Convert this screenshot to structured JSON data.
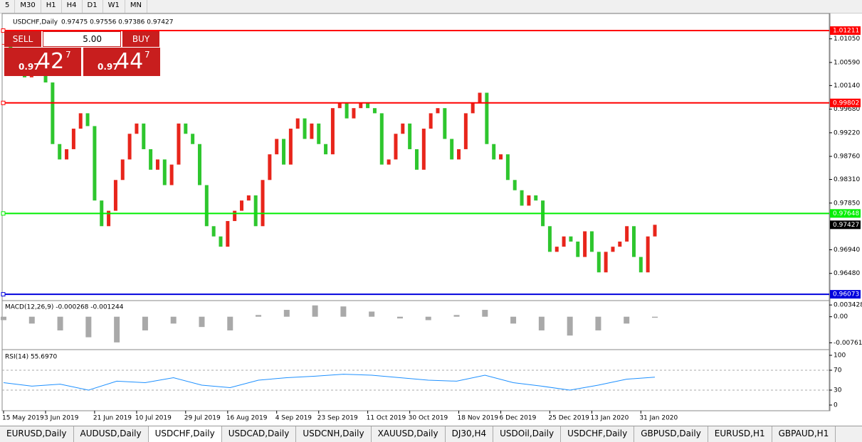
{
  "toolbar": {
    "timeframes": [
      "5",
      "M30",
      "H1",
      "H4",
      "D1",
      "W1",
      "MN"
    ]
  },
  "chart_data": [
    {
      "type": "candlestick",
      "title": "USDCHF,Daily",
      "info": "0.97475 0.97556 0.97386 0.97427",
      "categories": [
        "15 May 2019",
        null,
        null,
        null,
        null,
        null,
        "3 Jun 2019",
        null,
        null,
        null,
        null,
        null,
        null,
        "21 Jun 2019",
        null,
        null,
        null,
        null,
        null,
        "10 Jul 2019",
        null,
        null,
        null,
        null,
        null,
        null,
        "29 Jul 2019",
        null,
        null,
        null,
        null,
        null,
        "16 Aug 2019",
        null,
        null,
        null,
        null,
        null,
        null,
        "4 Sep 2019",
        null,
        null,
        null,
        null,
        null,
        "23 Sep 2019",
        null,
        null,
        null,
        null,
        null,
        null,
        "11 Oct 2019",
        null,
        null,
        null,
        null,
        null,
        "30 Oct 2019",
        null,
        null,
        null,
        null,
        null,
        null,
        "18 Nov 2019",
        null,
        null,
        null,
        null,
        null,
        "6 Dec 2019",
        null,
        null,
        null,
        null,
        null,
        null,
        "25 Dec 2019",
        null,
        null,
        null,
        null,
        null,
        "13 Jan 2020",
        null,
        null,
        null,
        null,
        null,
        null,
        "31 Jan 2020",
        null,
        null
      ],
      "close": [
        1.0095,
        1.008,
        1.006,
        1.003,
        1.0045,
        1.006,
        1.002,
        0.99,
        0.987,
        0.989,
        0.993,
        0.996,
        0.9935,
        0.979,
        0.974,
        0.977,
        0.983,
        0.987,
        0.992,
        0.994,
        0.989,
        0.985,
        0.987,
        0.982,
        0.986,
        0.994,
        0.992,
        0.99,
        0.982,
        0.974,
        0.972,
        0.97,
        0.975,
        0.977,
        0.979,
        0.98,
        0.974,
        0.983,
        0.988,
        0.991,
        0.986,
        0.993,
        0.995,
        0.991,
        0.994,
        0.99,
        0.988,
        0.997,
        0.998,
        0.995,
        0.997,
        0.998,
        0.997,
        0.996,
        0.986,
        0.987,
        0.992,
        0.994,
        0.989,
        0.985,
        0.993,
        0.996,
        0.997,
        0.991,
        0.987,
        0.989,
        0.996,
        0.998,
        1.0,
        0.99,
        0.987,
        0.988,
        0.983,
        0.981,
        0.978,
        0.98,
        0.979,
        0.974,
        0.969,
        0.97,
        0.972,
        0.971,
        0.968,
        0.973,
        0.969,
        0.965,
        0.969,
        0.97,
        0.971,
        0.974,
        0.968,
        0.965,
        0.972,
        0.97427
      ],
      "up_color": "#e8251b",
      "down_color": "#2ec62e",
      "ylim": [
        0.9595,
        1.0153
      ],
      "yticks": [
        {
          "value": 1.0105,
          "label": "1.01050"
        },
        {
          "value": 1.0059,
          "label": "1.00590"
        },
        {
          "value": 1.0014,
          "label": "1.00140"
        },
        {
          "value": 0.9968,
          "label": "0.99680"
        },
        {
          "value": 0.9922,
          "label": "0.99220"
        },
        {
          "value": 0.9876,
          "label": "0.98760"
        },
        {
          "value": 0.9831,
          "label": "0.98310"
        },
        {
          "value": 0.9785,
          "label": "0.97850"
        },
        {
          "value": 0.9694,
          "label": "0.96940"
        },
        {
          "value": 0.9648,
          "label": "0.96480"
        }
      ],
      "levels": [
        {
          "value": 1.01211,
          "color": "#ff0000"
        },
        {
          "value": 0.99802,
          "color": "#ff0000"
        },
        {
          "value": 0.97648,
          "color": "#00ee00"
        },
        {
          "value": 0.96073,
          "color": "#0000dd"
        }
      ],
      "last_price": 0.97427
    },
    {
      "type": "histogram",
      "title": "MACD(12,26,9) -0.000268 -0.001244",
      "color": "#a9a9a9",
      "values": [
        -0.001,
        -0.002,
        -0.004,
        -0.006,
        -0.0075,
        -0.004,
        -0.002,
        -0.003,
        -0.004,
        0.0005,
        0.002,
        0.0033,
        0.003,
        0.0015,
        -0.0005,
        -0.001,
        0.0005,
        0.002,
        -0.002,
        -0.004,
        -0.0055,
        -0.004,
        -0.002,
        -0.0003
      ],
      "ylim": [
        -0.0094,
        0.0045
      ],
      "yticks": [
        0.003428,
        {
          "value": 0,
          "label": "0.00"
        },
        -0.007615
      ]
    },
    {
      "type": "line",
      "title": "RSI(14) 55.6970",
      "color": "#1e90ff",
      "values": [
        45,
        38,
        42,
        30,
        48,
        45,
        55,
        40,
        35,
        50,
        55,
        58,
        62,
        60,
        55,
        50,
        48,
        60,
        45,
        38,
        30,
        40,
        52,
        56
      ],
      "ylim": [
        -10,
        110
      ],
      "yticks": [
        100,
        70,
        30,
        0
      ],
      "levels": [
        70,
        30
      ]
    }
  ],
  "trade_panel": {
    "sell": "SELL",
    "buy": "BUY",
    "volume": "5.00",
    "bid": {
      "big": "0.97",
      "pips": "42",
      "point": "7"
    },
    "ask": {
      "big": "0.97",
      "pips": "44",
      "point": "7"
    }
  },
  "tabs": [
    "EURUSD,Daily",
    "AUDUSD,Daily",
    "USDCHF,Daily",
    "USDCAD,Daily",
    "USDCNH,Daily",
    "XAUUSD,Daily",
    "DJ30,H4",
    "USDOil,Daily",
    "USDCHF,Daily",
    "GBPUSD,Daily",
    "EURUSD,H1",
    "GBPAUD,H1"
  ]
}
